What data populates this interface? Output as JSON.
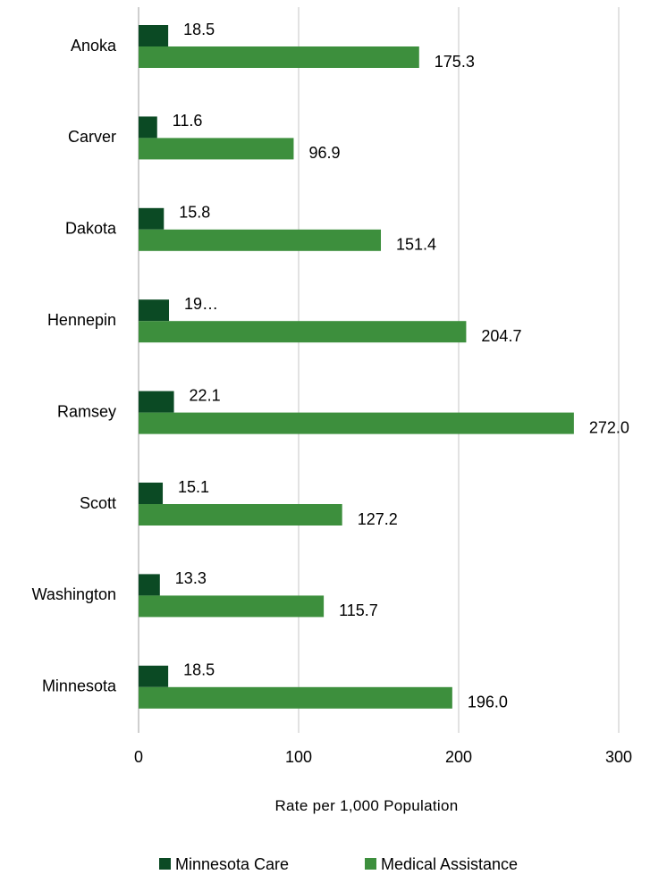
{
  "chart_data": {
    "type": "bar",
    "orientation": "horizontal",
    "categories": [
      "Anoka",
      "Carver",
      "Dakota",
      "Hennepin",
      "Ramsey",
      "Scott",
      "Washington",
      "Minnesota"
    ],
    "series": [
      {
        "name": "Minnesota Care",
        "color": "#0b4a24",
        "values": [
          18.5,
          11.6,
          15.8,
          19,
          22.1,
          15.1,
          13.3,
          18.5
        ],
        "labels": [
          "18.5",
          "11.6",
          "15.8",
          "19…",
          "22.1",
          "15.1",
          "13.3",
          "18.5"
        ]
      },
      {
        "name": "Medical Assistance",
        "color": "#3d8f3d",
        "values": [
          175.3,
          96.9,
          151.4,
          204.7,
          272.0,
          127.2,
          115.7,
          196.0
        ],
        "labels": [
          "175.3",
          "96.9",
          "151.4",
          "204.7",
          "272.0",
          "127.2",
          "115.7",
          "196.0"
        ]
      }
    ],
    "xlabel": "Rate per 1,000 Population",
    "ylabel": "",
    "xlim": [
      0,
      300
    ],
    "xticks": [
      0,
      100,
      200,
      300
    ],
    "xtick_labels": [
      "0",
      "100",
      "200",
      "300"
    ],
    "grid": true,
    "legend": "bottom"
  }
}
